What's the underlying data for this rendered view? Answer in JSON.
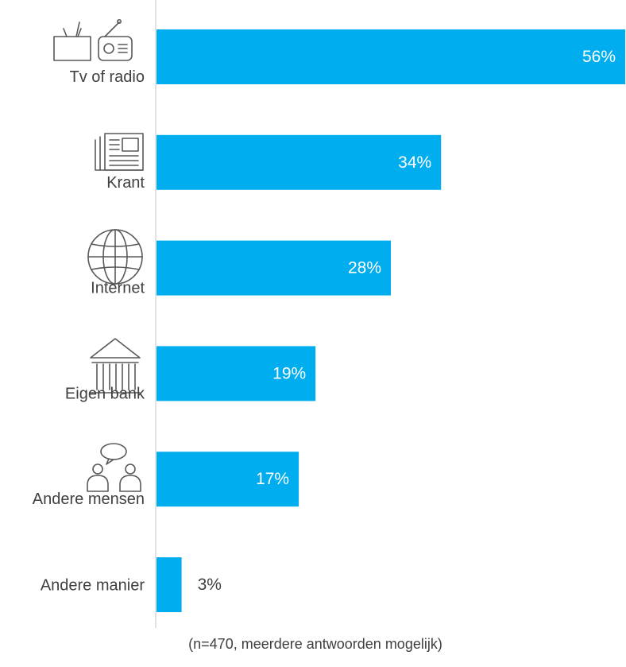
{
  "chart_data": {
    "type": "bar",
    "orientation": "horizontal",
    "categories": [
      "Tv of radio",
      "Krant",
      "Internet",
      "Eigen bank",
      "Andere mensen",
      "Andere manier"
    ],
    "values": [
      56,
      34,
      28,
      19,
      17,
      3
    ],
    "value_labels": [
      "56%",
      "34%",
      "28%",
      "19%",
      "17%",
      "3%"
    ],
    "category_icons": [
      "tv-radio-icon",
      "newspaper-icon",
      "globe-icon",
      "bank-icon",
      "people-talking-icon",
      ""
    ],
    "xlim": [
      0,
      56
    ],
    "grid": false,
    "bar_color": "#00aeef",
    "inside_label_color": "#ffffff",
    "outside_label_color": "#404040"
  },
  "footnote": "(n=470, meerdere antwoorden mogelijk)"
}
